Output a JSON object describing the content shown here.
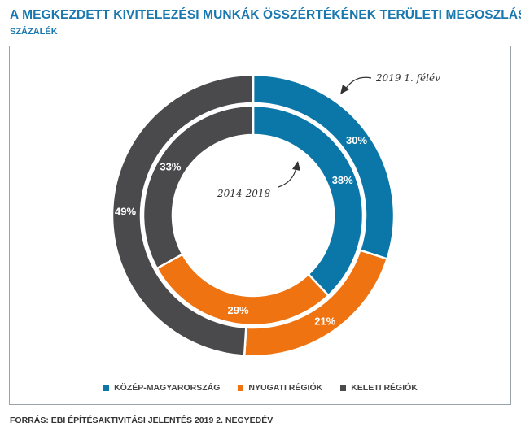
{
  "header": {
    "title": "A MEGKEZDETT KIVITELEZÉSI MUNKÁK ÖSSZÉRTÉKÉNEK TERÜLETI MEGOSZLÁSA",
    "subtitle": "SZÁZALÉK"
  },
  "chart_data": {
    "type": "pie",
    "categories": [
      "KÖZÉP-MAGYARORSZÁG",
      "NYUGATI RÉGIÓK",
      "KELETI RÉGIÓK"
    ],
    "colors": [
      "#0b77a8",
      "#ef7311",
      "#4a4a4d"
    ],
    "series": [
      {
        "name": "2019 1. félév",
        "ring": "outer",
        "values": [
          30,
          21,
          49
        ],
        "labels": [
          "30%",
          "21%",
          "49%"
        ]
      },
      {
        "name": "2014-2018",
        "ring": "inner",
        "values": [
          38,
          29,
          33
        ],
        "labels": [
          "38%",
          "29%",
          "33%"
        ]
      }
    ],
    "legend_position": "bottom"
  },
  "footer": {
    "source": "FORRÁS: EBI ÉPÍTÉSAKTIVITÁSI JELENTÉS 2019 2. NEGYEDÉV"
  }
}
